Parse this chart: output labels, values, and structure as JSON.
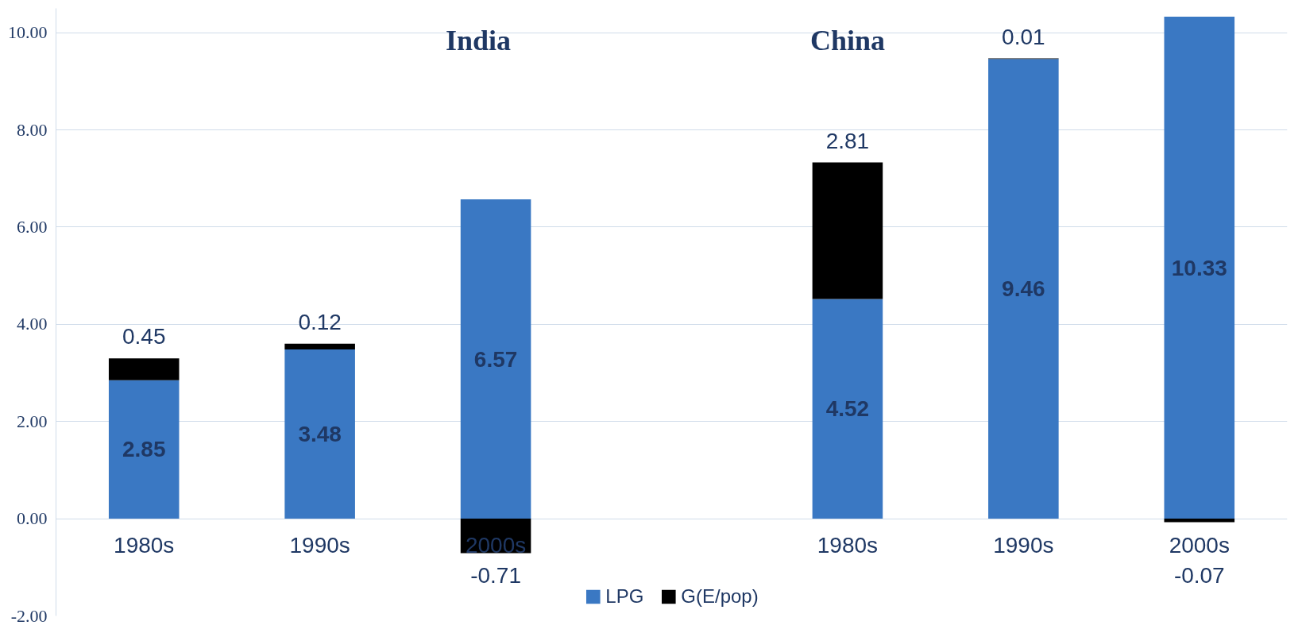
{
  "chart_data": {
    "type": "bar",
    "stacked": true,
    "categories": [
      "1980s",
      "1990s",
      "2000s",
      null,
      "1980s",
      "1990s",
      "2000s"
    ],
    "series": [
      {
        "name": "LPG",
        "color": "#3a78c3",
        "values": [
          2.85,
          3.48,
          6.57,
          null,
          4.52,
          9.46,
          10.33
        ]
      },
      {
        "name": "G(E/pop)",
        "color": "#000000",
        "values": [
          0.45,
          0.12,
          -0.71,
          null,
          2.81,
          0.01,
          -0.07
        ]
      }
    ],
    "ylim": [
      -2,
      10.5
    ],
    "yticks": [
      {
        "value": -2,
        "label": "-2.00"
      },
      {
        "value": 0,
        "label": "0.00"
      },
      {
        "value": 2,
        "label": "2.00"
      },
      {
        "value": 4,
        "label": "4.00"
      },
      {
        "value": 6,
        "label": "6.00"
      },
      {
        "value": 8,
        "label": "8.00"
      },
      {
        "value": 10,
        "label": "10.00"
      }
    ],
    "annotations": [
      "India",
      "China"
    ],
    "data_labels": true,
    "grid": "y",
    "legend": "bottom"
  }
}
